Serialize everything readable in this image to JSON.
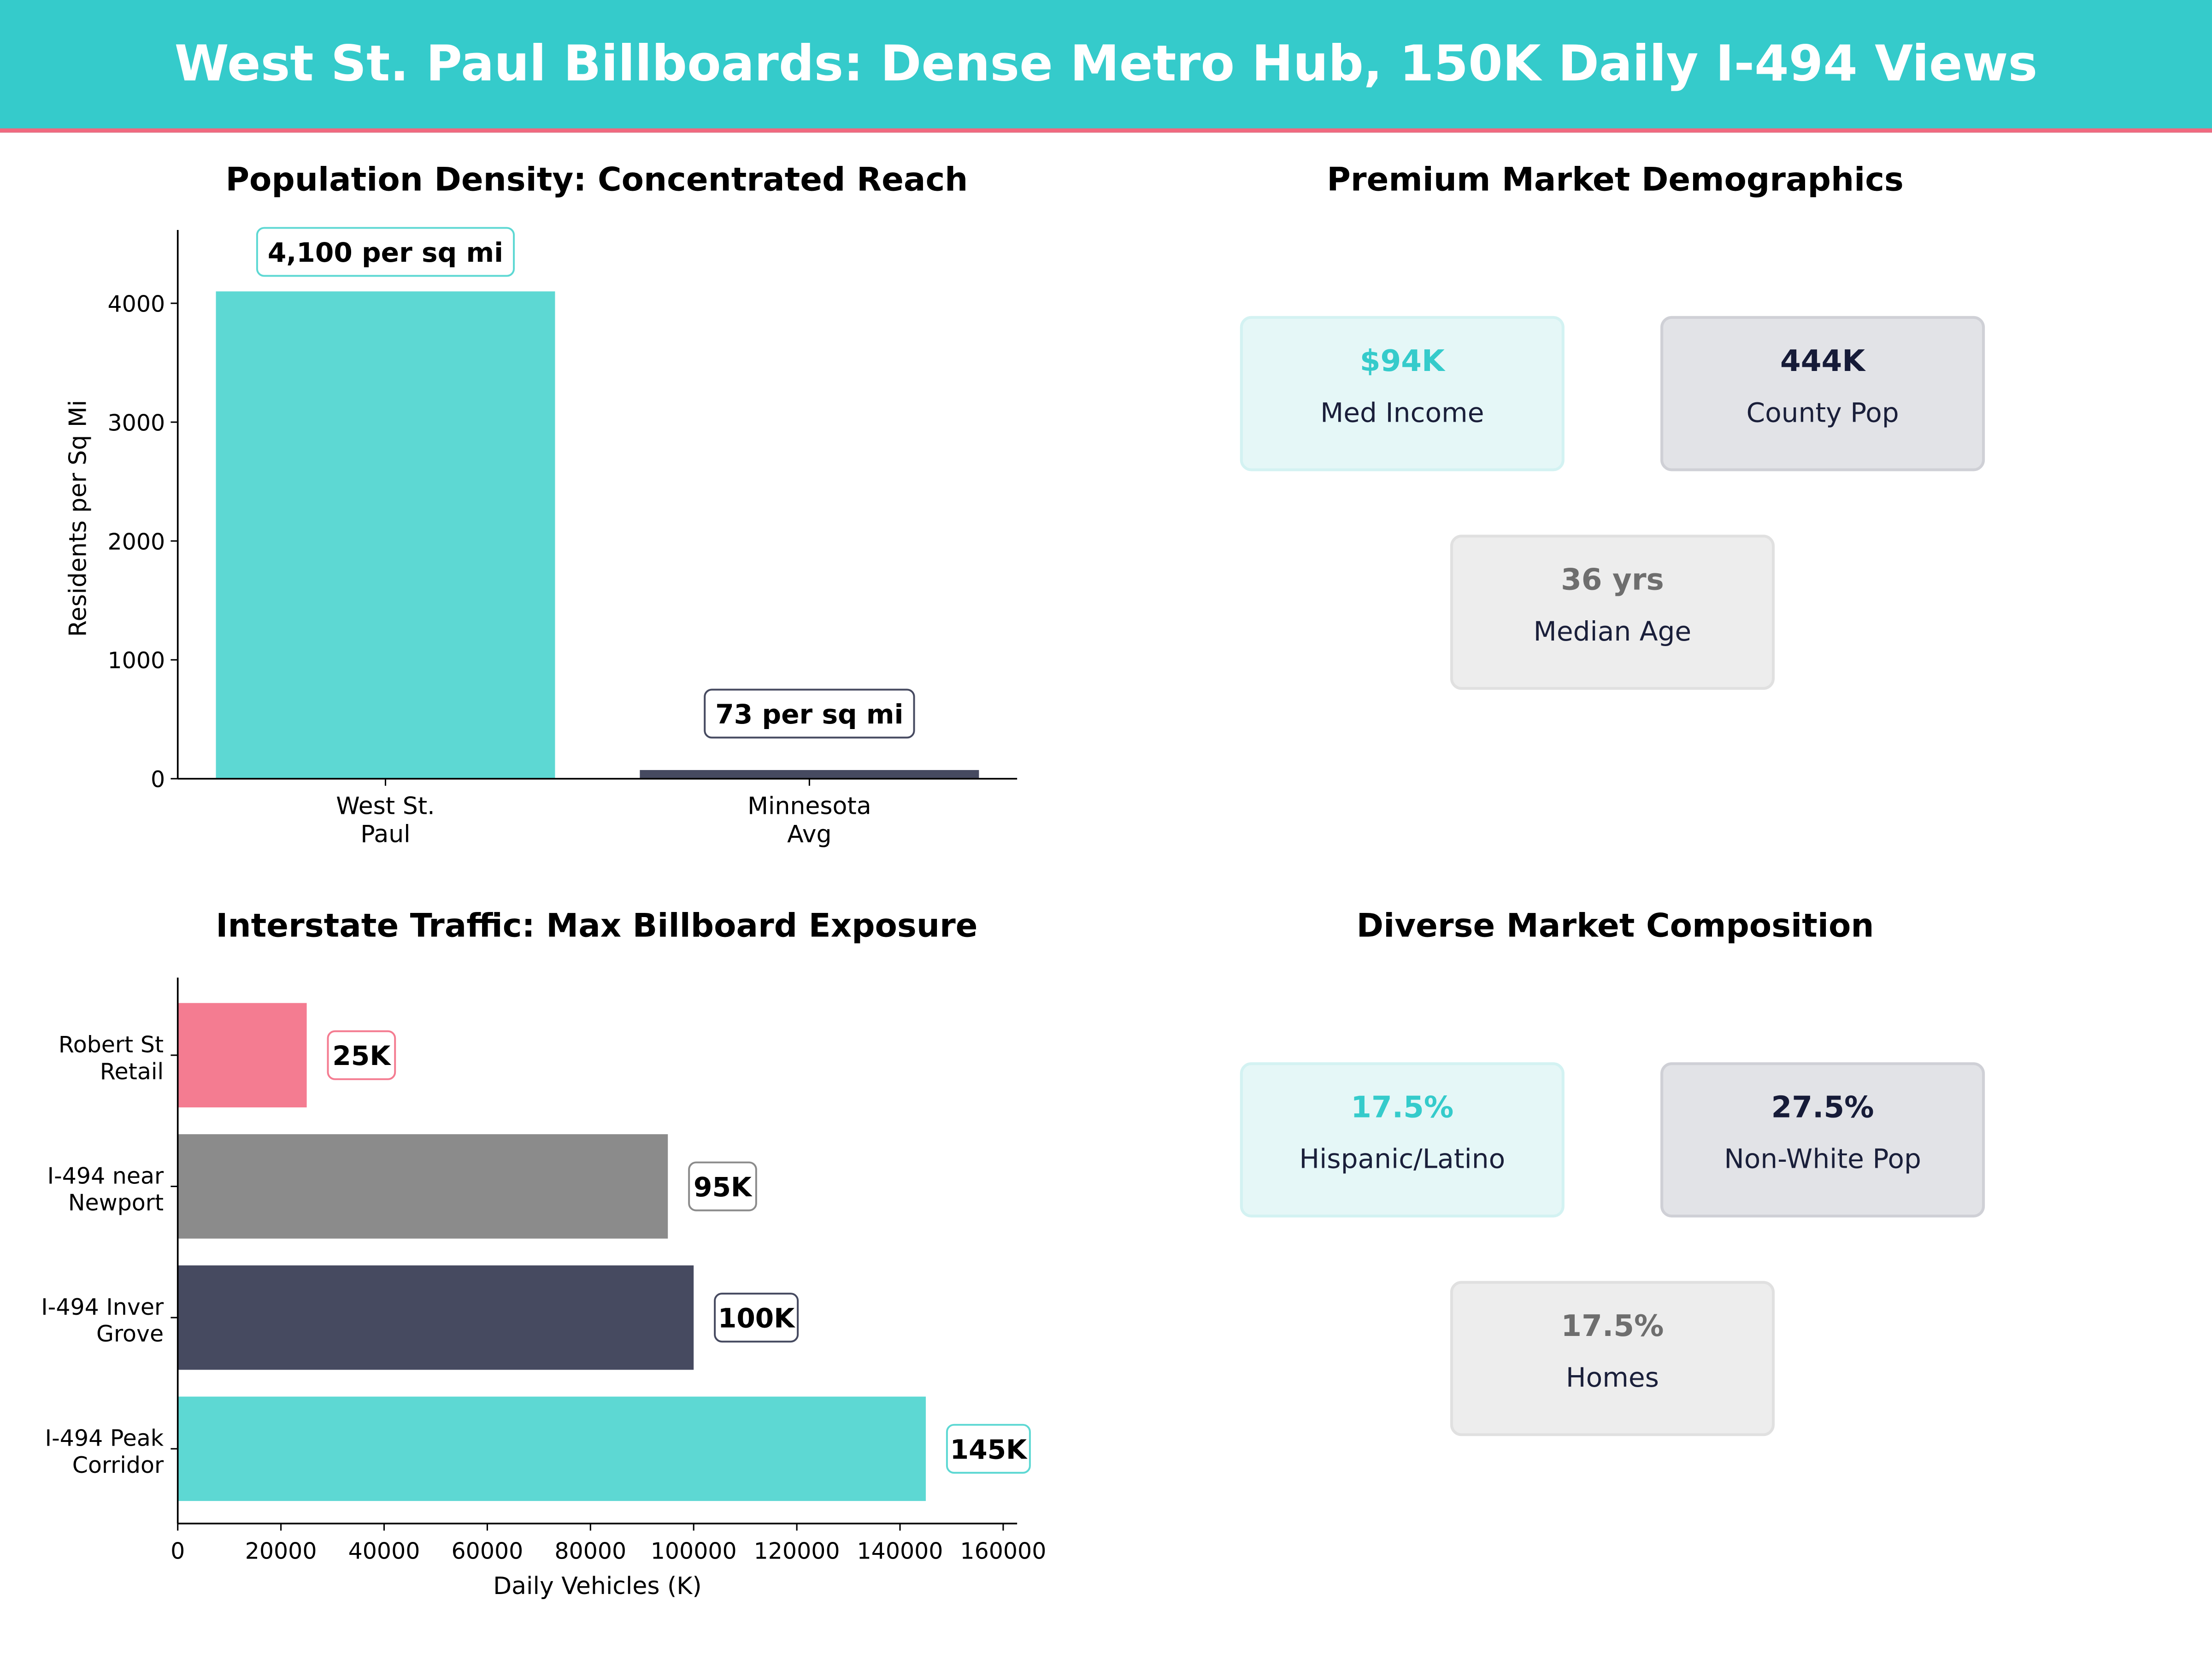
{
  "header": {
    "title": "West St. Paul Billboards: Dense Metro Hub, 150K Daily I-494 Views"
  },
  "colors": {
    "teal": "#5dd8d3",
    "dark": "#464a60",
    "pink": "#f47c91",
    "gray": "#8b8b8b",
    "header_bg": "#35cbcb",
    "header_line": "#f0697f"
  },
  "chart_data": [
    {
      "type": "bar",
      "title": "Population Density: Concentrated Reach",
      "xlabel": "",
      "ylabel": "Residents per Sq Mi",
      "categories": [
        "West St.\nPaul",
        "Minnesota\nAvg"
      ],
      "values": [
        4100,
        73
      ],
      "data_labels": [
        "4,100 per sq mi",
        "73 per sq mi"
      ],
      "bar_colors": [
        "#5dd8d3",
        "#464a60"
      ],
      "ylim": [
        0,
        4617
      ],
      "yticks": [
        0,
        1000,
        2000,
        3000,
        4000
      ],
      "grid": false
    },
    {
      "type": "bar",
      "orientation": "horizontal",
      "title": "Interstate Traffic: Max Billboard Exposure",
      "xlabel": "Daily Vehicles (K)",
      "ylabel": "",
      "categories": [
        "Robert St\nRetail",
        "I-494 near\nNewport",
        "I-494 Inver\nGrove",
        "I-494 Peak\nCorridor"
      ],
      "values": [
        25000,
        95000,
        100000,
        145000
      ],
      "data_labels": [
        "25K",
        "95K",
        "100K",
        "145K"
      ],
      "bar_colors": [
        "#f47c91",
        "#8b8b8b",
        "#464a60",
        "#5dd8d3"
      ],
      "xlim": [
        0,
        162700
      ],
      "xticks": [
        0,
        20000,
        40000,
        60000,
        80000,
        100000,
        120000,
        140000,
        160000
      ],
      "grid": false
    }
  ],
  "demographics": {
    "title": "Premium Market Demographics",
    "cards": [
      {
        "value": "$94K",
        "label": "Med Income"
      },
      {
        "value": "444K",
        "label": "County Pop"
      },
      {
        "value": "36 yrs",
        "label": "Median Age"
      }
    ]
  },
  "composition": {
    "title": "Diverse Market Composition",
    "cards": [
      {
        "value": "17.5%",
        "label": "Hispanic/Latino"
      },
      {
        "value": "27.5%",
        "label": "Non-White Pop"
      },
      {
        "value": "17.5%",
        "label": "Homes"
      }
    ]
  }
}
